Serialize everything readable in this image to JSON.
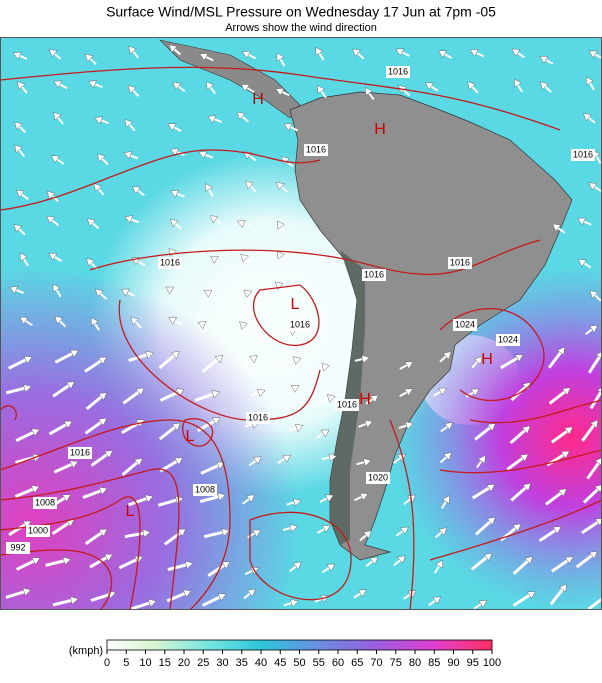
{
  "header": {
    "title": "Surface Wind/MSL Pressure on Wednesday 17 Jun at 7pm -05",
    "subtitle": "Arrows show the wind direction"
  },
  "map": {
    "isobar_labels": [
      "1016",
      "1016",
      "1016",
      "1016",
      "1016",
      "1008",
      "1000",
      "992",
      "1008",
      "1024",
      "1024",
      "1016",
      "1016",
      "1016",
      "1020",
      "1016",
      "1016"
    ],
    "pressure_centers": [
      "H",
      "H",
      "L",
      "L",
      "L",
      "H",
      "H"
    ]
  },
  "legend": {
    "unit": "(kmph)",
    "ticks": [
      0,
      5,
      10,
      15,
      20,
      25,
      30,
      35,
      40,
      45,
      50,
      55,
      60,
      65,
      70,
      75,
      80,
      85,
      90,
      95,
      100
    ]
  }
}
